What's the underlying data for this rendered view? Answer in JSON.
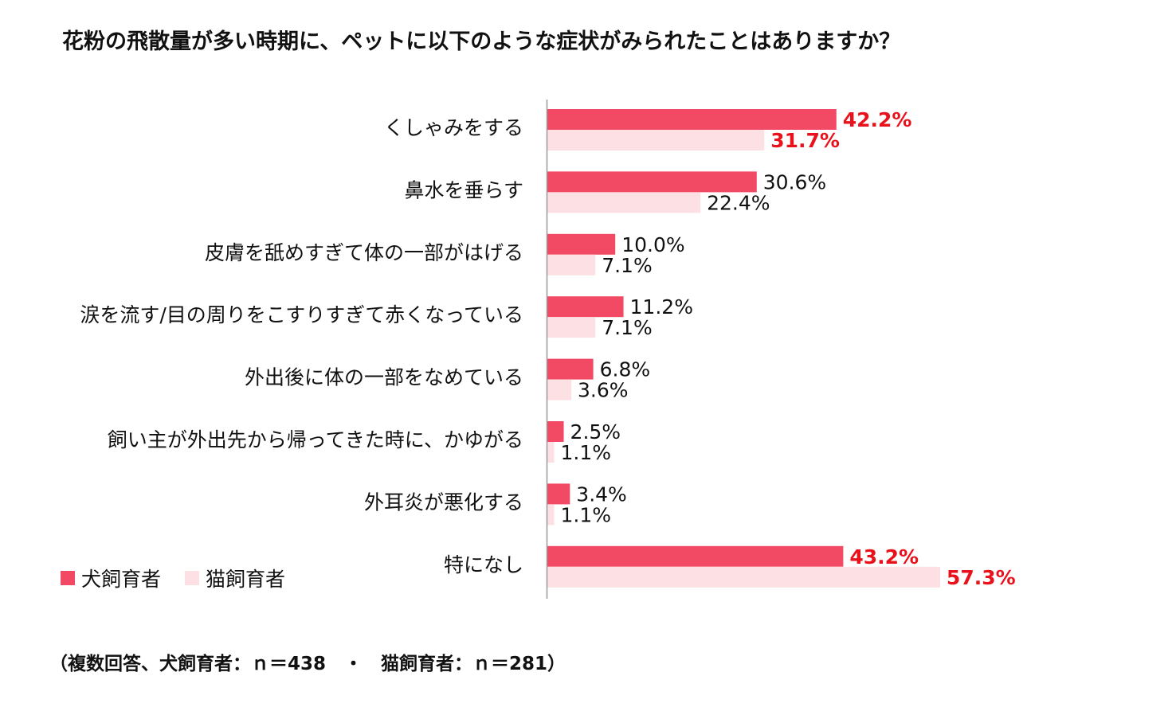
{
  "title": "花粉の飛散量が多い時期に、ペットに以下のような症状がみられたことはありますか？",
  "footnote": "（複数回答、犬飼育者：ｎ＝438　・　猫飼育者：ｎ＝281）",
  "colors": {
    "dog": "#f24a64",
    "cat": "#fde0e3",
    "highlight": "#e8121c",
    "axis": "#999999",
    "text": "#111111"
  },
  "legend": [
    {
      "label": "犬飼育者",
      "color": "#f24a64"
    },
    {
      "label": "猫飼育者",
      "color": "#fde0e3"
    }
  ],
  "chart_data": {
    "type": "bar",
    "orientation": "horizontal",
    "categories": [
      "くしゃみをする",
      "鼻水を垂らす",
      "皮膚を舐めすぎて体の一部がはげる",
      "涙を流す/目の周りをこすりすぎて赤くなっている",
      "外出後に体の一部をなめている",
      "飼い主が外出先から帰ってきた時に、かゆがる",
      "外耳炎が悪化する",
      "特になし"
    ],
    "series": [
      {
        "name": "犬飼育者",
        "values": [
          42.2,
          30.6,
          10.0,
          11.2,
          6.8,
          2.5,
          3.4,
          43.2
        ],
        "labels": [
          "42.2%",
          "30.6%",
          "10.0%",
          "11.2%",
          "6.8%",
          "2.5%",
          "3.4%",
          "43.2%"
        ],
        "highlighted": [
          true,
          false,
          false,
          false,
          false,
          false,
          false,
          true
        ]
      },
      {
        "name": "猫飼育者",
        "values": [
          31.7,
          22.4,
          7.1,
          7.1,
          3.6,
          1.1,
          1.1,
          57.3
        ],
        "labels": [
          "31.7%",
          "22.4%",
          "7.1%",
          "7.1%",
          "3.6%",
          "1.1%",
          "1.1%",
          "57.3%"
        ],
        "highlighted": [
          true,
          false,
          false,
          false,
          false,
          false,
          false,
          true
        ]
      }
    ],
    "xlim": [
      0,
      100
    ],
    "grid": false,
    "legend_position": "bottom-left"
  }
}
